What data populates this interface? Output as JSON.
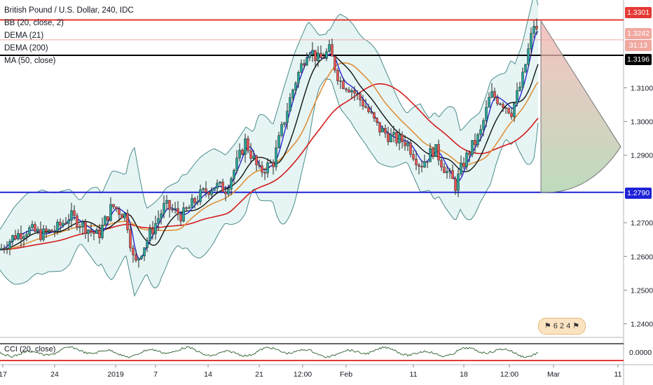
{
  "legend": {
    "title": "British Pound / U.S. Dollar, 240, IDC",
    "bb": "BB (20, close, 2)",
    "dema21": "DEMA (21)",
    "dema200": "DEMA (200)",
    "ma50": "MA (50, close)",
    "cci": "CCI (20, close)"
  },
  "price_labels": {
    "resistance": "1.3301",
    "last": "1.3242",
    "countdown": "31:13",
    "black_line": "1.3196",
    "support": "1.2790"
  },
  "badge": {
    "counts": "6  2  4"
  },
  "colors": {
    "resistance": "#e53935",
    "support": "#1e22d6",
    "black_line": "#000000",
    "candle_up": "#26a69a",
    "candle_down": "#ef5350",
    "bb_fill": "#e0f2f1",
    "bb_band": "#4a8b8b",
    "dema21": "#2828d0",
    "dema200": "#e0903a",
    "ma50": "#d41c1c",
    "projection_fill_top": "#f4b0b0",
    "projection_fill_bottom": "#a8cfa8"
  },
  "chart_data": {
    "type": "candlestick",
    "title": "British Pound / U.S. Dollar, 240, IDC",
    "x_tick_labels": [
      "17",
      "24",
      "2019",
      "7",
      "14",
      "21",
      "12:00",
      "Feb",
      "11",
      "18",
      "12:00",
      "Mar",
      "11"
    ],
    "y_tick_labels": [
      "1.3100",
      "1.3000",
      "1.2900",
      "1.2700",
      "1.2600",
      "1.2500",
      "1.2400"
    ],
    "y_range": [
      1.236,
      1.336
    ],
    "horizontal_levels": [
      {
        "name": "resistance",
        "value": 1.3301
      },
      {
        "name": "black_line",
        "value": 1.3196
      },
      {
        "name": "support",
        "value": 1.279
      }
    ],
    "last_price": 1.3242,
    "close_path": [
      {
        "x": 0,
        "y": 1.262
      },
      {
        "x": 20,
        "y": 1.266
      },
      {
        "x": 40,
        "y": 1.268
      },
      {
        "x": 60,
        "y": 1.2665
      },
      {
        "x": 80,
        "y": 1.268
      },
      {
        "x": 100,
        "y": 1.272
      },
      {
        "x": 120,
        "y": 1.269
      },
      {
        "x": 140,
        "y": 1.266
      },
      {
        "x": 160,
        "y": 1.275
      },
      {
        "x": 180,
        "y": 1.272
      },
      {
        "x": 192,
        "y": 1.257
      },
      {
        "x": 200,
        "y": 1.261
      },
      {
        "x": 215,
        "y": 1.267
      },
      {
        "x": 235,
        "y": 1.275
      },
      {
        "x": 260,
        "y": 1.272
      },
      {
        "x": 285,
        "y": 1.278
      },
      {
        "x": 305,
        "y": 1.281
      },
      {
        "x": 322,
        "y": 1.28
      },
      {
        "x": 335,
        "y": 1.286
      },
      {
        "x": 350,
        "y": 1.294
      },
      {
        "x": 370,
        "y": 1.285
      },
      {
        "x": 390,
        "y": 1.288
      },
      {
        "x": 405,
        "y": 1.3
      },
      {
        "x": 420,
        "y": 1.311
      },
      {
        "x": 440,
        "y": 1.322
      },
      {
        "x": 455,
        "y": 1.318
      },
      {
        "x": 470,
        "y": 1.321
      },
      {
        "x": 485,
        "y": 1.312
      },
      {
        "x": 500,
        "y": 1.31
      },
      {
        "x": 520,
        "y": 1.305
      },
      {
        "x": 540,
        "y": 1.298
      },
      {
        "x": 560,
        "y": 1.295
      },
      {
        "x": 580,
        "y": 1.294
      },
      {
        "x": 600,
        "y": 1.287
      },
      {
        "x": 620,
        "y": 1.292
      },
      {
        "x": 635,
        "y": 1.286
      },
      {
        "x": 650,
        "y": 1.281
      },
      {
        "x": 660,
        "y": 1.287
      },
      {
        "x": 672,
        "y": 1.292
      },
      {
        "x": 685,
        "y": 1.296
      },
      {
        "x": 700,
        "y": 1.308
      },
      {
        "x": 715,
        "y": 1.306
      },
      {
        "x": 730,
        "y": 1.303
      },
      {
        "x": 745,
        "y": 1.312
      },
      {
        "x": 755,
        "y": 1.322
      },
      {
        "x": 763,
        "y": 1.3298
      },
      {
        "x": 768,
        "y": 1.3242
      }
    ],
    "projection_cone": {
      "apex_price": 1.3298,
      "upper_price": 1.2925,
      "lower_price": 1.279
    },
    "cci_zero_label": "0.0000"
  }
}
